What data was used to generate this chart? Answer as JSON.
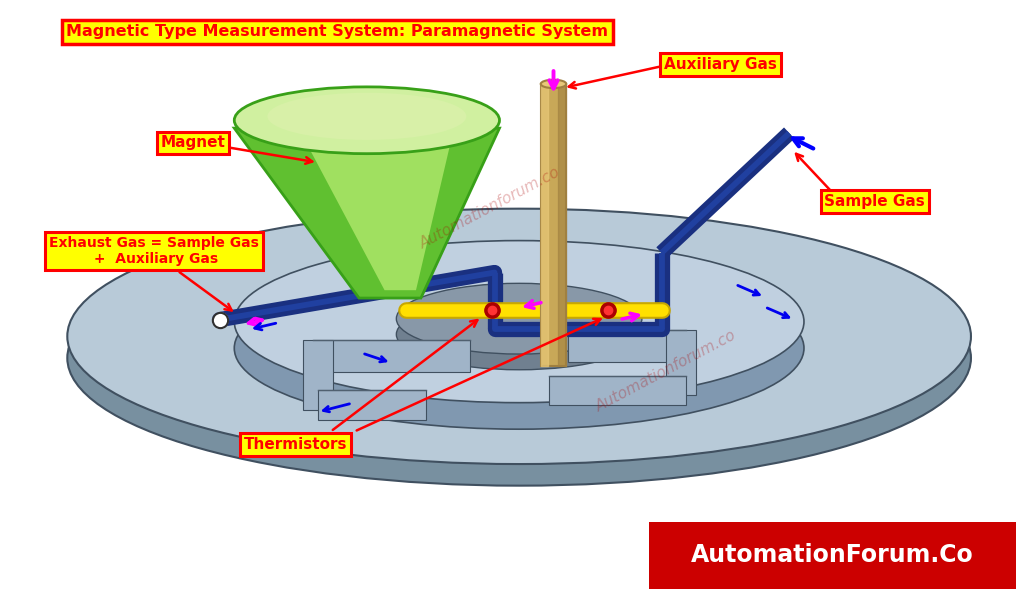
{
  "title": "Magnetic Type Measurement System: Paramagnetic System",
  "title_color": "#FF0000",
  "title_bg": "#FFFF00",
  "title_border": "#FF0000",
  "background_color": "#FFFFFF",
  "watermark1": "Automationforum.co",
  "watermark2": "Automationforum.co",
  "footer_text": "AutomationForum.Co",
  "footer_bg": "#CC0000",
  "footer_text_color": "#FFFFFF",
  "labels": {
    "magnet": "Magnet",
    "auxiliary_gas": "Auxiliary Gas",
    "sample_gas": "Sample Gas",
    "exhaust_gas": "Exhaust Gas = Sample Gas\n +  Auxiliary Gas",
    "thermistors": "Thermistors"
  },
  "label_bg": "#FFFF00",
  "label_border": "#FF0000",
  "label_text_color": "#FF0000",
  "colors": {
    "disk_top": "#B8CAD8",
    "disk_side": "#7890A0",
    "disk_inner_top": "#C0D0E0",
    "disk_inner_side": "#8098B0",
    "channel_top": "#A0B4C8",
    "channel_side": "#708090",
    "hole_color": "#9AAABB",
    "blue_tube": "#1A3080",
    "blue_tube_mid": "#2040A0",
    "yellow_tube": "#FFE000",
    "yellow_tube_outline": "#C8A800",
    "aux_tube_light": "#E8C878",
    "aux_tube_mid": "#C8A858",
    "aux_tube_dark": "#A08040",
    "cone_dark": "#38A018",
    "cone_mid": "#60C030",
    "cone_light": "#A0E060",
    "cone_top_light": "#D0F0A0",
    "thermistor_dot": "#DD0000",
    "magenta": "#FF00FF",
    "blue_arrow": "#0000EE",
    "red_line": "#EE0000"
  }
}
